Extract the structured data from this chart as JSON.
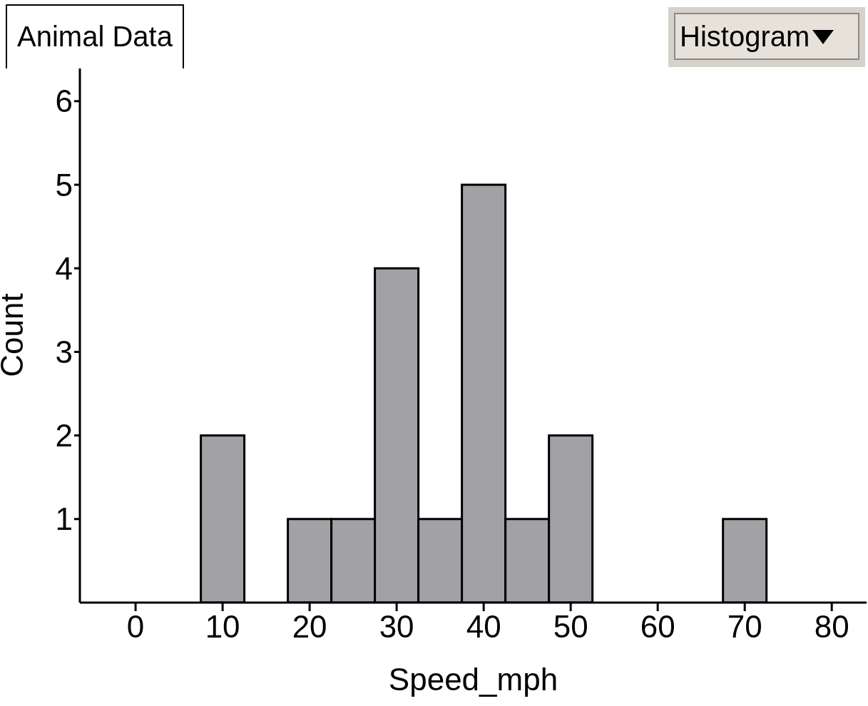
{
  "chart_data": {
    "type": "histogram",
    "title": "Animal Data",
    "xlabel": "Speed_mph",
    "ylabel": "Count",
    "annotations": [
      "Histogram"
    ],
    "bins": [
      7.5,
      12.5,
      17.5,
      22.5,
      27.5,
      32.5,
      37.5,
      42.5,
      47.5,
      52.5,
      57.5,
      62.5,
      67.5,
      72.5
    ],
    "values": [
      2,
      0,
      1,
      1,
      4,
      1,
      5,
      1,
      2,
      0,
      0,
      0,
      1
    ],
    "color": "#a2a1a6",
    "xlim": [
      -6.4,
      84
    ],
    "xticks": [
      0,
      10,
      20,
      30,
      40,
      50,
      60,
      70,
      80
    ],
    "ylim": [
      0,
      6.4
    ],
    "yticks": [
      1,
      2,
      3,
      4,
      5,
      6
    ],
    "grid": false
  }
}
